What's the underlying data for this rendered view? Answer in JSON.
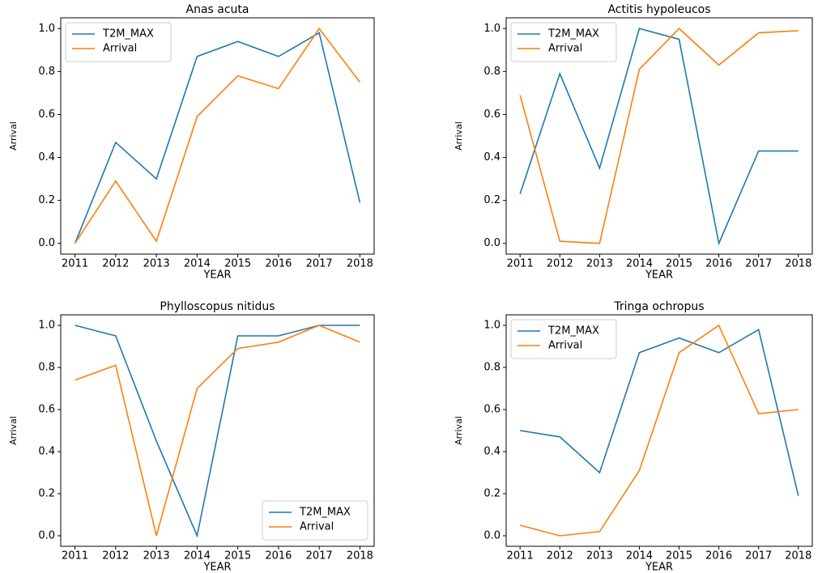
{
  "chart_data": [
    {
      "type": "line",
      "title": "Anas acuta",
      "xlabel": "YEAR",
      "ylabel": "Arrival",
      "x": [
        2011,
        2012,
        2013,
        2014,
        2015,
        2016,
        2017,
        2018
      ],
      "series": [
        {
          "name": "T2M_MAX",
          "color": "#1f77b4",
          "values": [
            0.0,
            0.47,
            0.3,
            0.87,
            0.94,
            0.87,
            0.98,
            0.19
          ]
        },
        {
          "name": "Arrival",
          "color": "#ff7f0e",
          "values": [
            0.0,
            0.29,
            0.01,
            0.59,
            0.78,
            0.72,
            1.0,
            0.75
          ]
        }
      ],
      "xlim": [
        2010.65,
        2018.35
      ],
      "xticks": [
        2011,
        2012,
        2013,
        2014,
        2015,
        2016,
        2017,
        2018
      ],
      "ylim": [
        -0.05,
        1.05
      ],
      "yticks": [
        {
          "value": 0,
          "label": "0.0"
        },
        0.2,
        0.4,
        0.6,
        0.8,
        {
          "value": 1,
          "label": "1.0"
        }
      ],
      "legend": "upper left"
    },
    {
      "type": "line",
      "title": "Actitis hypoleucos",
      "xlabel": "YEAR",
      "ylabel": "Arrival",
      "x": [
        2011,
        2012,
        2013,
        2014,
        2015,
        2016,
        2017,
        2018
      ],
      "series": [
        {
          "name": "T2M_MAX",
          "color": "#1f77b4",
          "values": [
            0.23,
            0.79,
            0.35,
            1.0,
            0.95,
            0.0,
            0.43,
            0.43
          ]
        },
        {
          "name": "Arrival",
          "color": "#ff7f0e",
          "values": [
            0.69,
            0.01,
            0.0,
            0.81,
            1.0,
            0.83,
            0.98,
            0.99
          ]
        }
      ],
      "xlim": [
        2010.65,
        2018.35
      ],
      "xticks": [
        2011,
        2012,
        2013,
        2014,
        2015,
        2016,
        2017,
        2018
      ],
      "ylim": [
        -0.05,
        1.05
      ],
      "yticks": [
        {
          "value": 0,
          "label": "0.0"
        },
        0.2,
        0.4,
        0.6,
        0.8,
        {
          "value": 1,
          "label": "1.0"
        }
      ],
      "legend": "upper left"
    },
    {
      "type": "line",
      "title": "Phylloscopus nitidus",
      "xlabel": "YEAR",
      "ylabel": "Arrival",
      "x": [
        2011,
        2012,
        2013,
        2014,
        2015,
        2016,
        2017,
        2018
      ],
      "series": [
        {
          "name": "T2M_MAX",
          "color": "#1f77b4",
          "values": [
            1.0,
            0.95,
            0.45,
            0.0,
            0.95,
            0.95,
            1.0,
            1.0
          ]
        },
        {
          "name": "Arrival",
          "color": "#ff7f0e",
          "values": [
            0.74,
            0.81,
            0.0,
            0.7,
            0.89,
            0.92,
            1.0,
            0.92
          ]
        }
      ],
      "xlim": [
        2010.65,
        2018.35
      ],
      "xticks": [
        2011,
        2012,
        2013,
        2014,
        2015,
        2016,
        2017,
        2018
      ],
      "ylim": [
        -0.05,
        1.05
      ],
      "yticks": [
        {
          "value": 0,
          "label": "0.0"
        },
        0.2,
        0.4,
        0.6,
        0.8,
        {
          "value": 1,
          "label": "1.0"
        }
      ],
      "legend": "lower right"
    },
    {
      "type": "line",
      "title": "Tringa ochropus",
      "xlabel": "YEAR",
      "ylabel": "Arrival",
      "x": [
        2011,
        2012,
        2013,
        2014,
        2015,
        2016,
        2017,
        2018
      ],
      "series": [
        {
          "name": "T2M_MAX",
          "color": "#1f77b4",
          "values": [
            0.5,
            0.47,
            0.3,
            0.87,
            0.94,
            0.87,
            0.98,
            0.19
          ]
        },
        {
          "name": "Arrival",
          "color": "#ff7f0e",
          "values": [
            0.05,
            0.0,
            0.02,
            0.31,
            0.87,
            1.0,
            0.58,
            0.6
          ]
        }
      ],
      "xlim": [
        2010.65,
        2018.35
      ],
      "xticks": [
        2011,
        2012,
        2013,
        2014,
        2015,
        2016,
        2017,
        2018
      ],
      "ylim": [
        -0.05,
        1.05
      ],
      "yticks": [
        {
          "value": 0,
          "label": "0.0"
        },
        0.2,
        0.4,
        0.6,
        0.8,
        {
          "value": 1,
          "label": "1.0"
        }
      ],
      "legend": "upper left"
    }
  ]
}
